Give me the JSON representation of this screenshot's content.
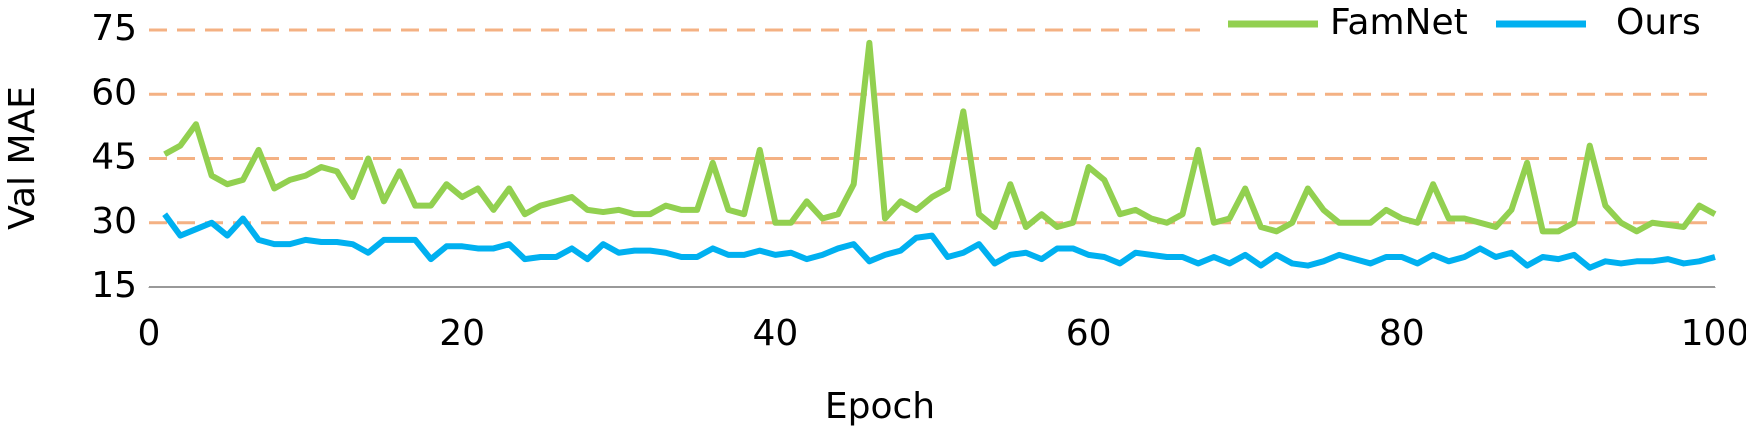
{
  "chart_data": {
    "type": "line",
    "x": [
      1,
      2,
      3,
      4,
      5,
      6,
      7,
      8,
      9,
      10,
      11,
      12,
      13,
      14,
      15,
      16,
      17,
      18,
      19,
      20,
      21,
      22,
      23,
      24,
      25,
      26,
      27,
      28,
      29,
      30,
      31,
      32,
      33,
      34,
      35,
      36,
      37,
      38,
      39,
      40,
      41,
      42,
      43,
      44,
      45,
      46,
      47,
      48,
      49,
      50,
      51,
      52,
      53,
      54,
      55,
      56,
      57,
      58,
      59,
      60,
      61,
      62,
      63,
      64,
      65,
      66,
      67,
      68,
      69,
      70,
      71,
      72,
      73,
      74,
      75,
      76,
      77,
      78,
      79,
      80,
      81,
      82,
      83,
      84,
      85,
      86,
      87,
      88,
      89,
      90,
      91,
      92,
      93,
      94,
      95,
      96,
      97,
      98,
      99,
      100
    ],
    "series": [
      {
        "name": "FamNet",
        "color": "#92d050",
        "values": [
          46,
          48,
          53,
          41,
          39,
          40,
          47,
          38,
          40,
          41,
          43,
          42,
          36,
          45,
          35,
          42,
          34,
          34,
          39,
          36,
          38,
          33,
          38,
          32,
          34,
          35,
          36,
          33,
          32.5,
          33,
          32,
          32,
          34,
          33,
          33,
          44,
          33,
          32,
          47,
          30,
          30,
          35,
          31,
          32,
          39,
          72,
          31,
          35,
          33,
          36,
          38,
          56,
          32,
          29,
          39,
          29,
          32,
          29,
          30,
          43,
          40,
          32,
          33,
          31,
          30,
          32,
          47,
          30,
          31,
          38,
          29,
          28,
          30,
          38,
          33,
          30,
          30,
          30,
          33,
          31,
          30,
          39,
          31,
          31,
          30,
          29,
          33,
          44,
          28,
          28,
          30,
          48,
          34,
          30,
          28,
          30,
          29.5,
          29,
          34,
          32
        ]
      },
      {
        "name": "Ours",
        "color": "#00b0f0",
        "values": [
          32,
          27,
          28.5,
          30,
          27,
          31,
          26,
          25,
          25,
          26,
          25.5,
          25.5,
          25,
          23,
          26,
          26,
          26,
          21.5,
          24.5,
          24.5,
          24,
          24,
          25,
          21.5,
          22,
          22,
          24,
          21.5,
          25,
          23,
          23.5,
          23.5,
          23,
          22,
          22,
          24,
          22.5,
          22.5,
          23.5,
          22.5,
          23,
          21.5,
          22.5,
          24,
          25,
          21,
          22.5,
          23.5,
          26.5,
          27,
          22,
          23,
          25,
          20.5,
          22.5,
          23,
          21.5,
          24,
          24,
          22.5,
          22,
          20.5,
          23,
          22.5,
          22,
          22,
          20.5,
          22,
          20.5,
          22.5,
          20,
          22.5,
          20.5,
          20,
          21,
          22.5,
          21.5,
          20.5,
          22,
          22,
          20.5,
          22.5,
          21,
          22,
          24,
          22,
          23,
          20,
          22,
          21.5,
          22.5,
          19.5,
          21,
          20.5,
          21,
          21,
          21.5,
          20.5,
          21,
          22
        ]
      }
    ],
    "x_label": "Epoch",
    "y_label": "Val MAE",
    "xlim": [
      0,
      100
    ],
    "xticks": [
      0,
      20,
      40,
      60,
      80,
      100
    ],
    "ylim": [
      15,
      75
    ],
    "yticks": [
      15,
      30,
      45,
      60,
      75
    ],
    "grid": true,
    "grid_color": "#f4b183",
    "legend": "top-right"
  }
}
